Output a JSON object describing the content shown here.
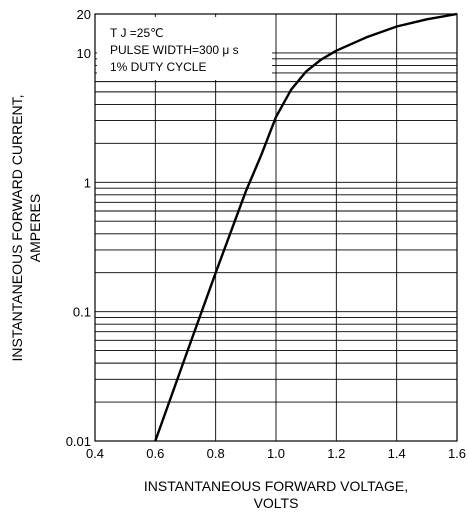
{
  "chart_data": {
    "type": "line",
    "title": "",
    "xlabel": [
      "INSTANTANEOUS FORWARD VOLTAGE,",
      "VOLTS"
    ],
    "ylabel": [
      "INSTANTANEOUS FORWARD CURRENT,",
      "AMPERES"
    ],
    "xlim": [
      0.4,
      1.6
    ],
    "ylim": [
      0.01,
      20
    ],
    "y_scale": "log",
    "grid": true,
    "x_ticks": [
      0.4,
      0.6,
      0.8,
      1.0,
      1.2,
      1.4,
      1.6
    ],
    "x_tick_labels": [
      "0.4",
      "0.6",
      "0.8",
      "1.0",
      "1.2",
      "1.4",
      "1.6"
    ],
    "y_ticks": [
      0.01,
      0.1,
      1,
      10,
      20
    ],
    "y_tick_labels": [
      "0.01",
      "0.1",
      "1",
      "10",
      "20"
    ],
    "annotations": [
      "T J =25℃",
      "PULSE WIDTH=300 μ s",
      "1% DUTY CYCLE"
    ],
    "series": [
      {
        "name": "",
        "x": [
          0.6,
          0.7,
          0.8,
          0.9,
          0.95,
          1.0,
          1.05,
          1.1,
          1.15,
          1.2,
          1.3,
          1.4,
          1.5,
          1.6
        ],
        "y": [
          0.01,
          0.045,
          0.2,
          0.85,
          1.6,
          3.2,
          5.2,
          7.2,
          8.9,
          10.4,
          13.2,
          16,
          18.2,
          20
        ]
      }
    ]
  }
}
